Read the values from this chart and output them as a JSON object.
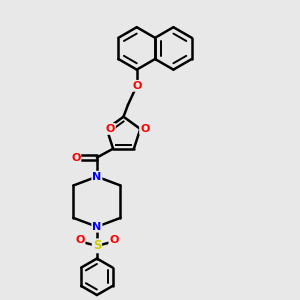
{
  "background_color": "#e8e8e8",
  "bond_color": "#000000",
  "atom_colors": {
    "O": "#ff0000",
    "N": "#0000ff",
    "S": "#cccc00",
    "C": "#000000"
  },
  "bond_width": 1.8,
  "figsize": [
    3.0,
    3.0
  ],
  "dpi": 100
}
